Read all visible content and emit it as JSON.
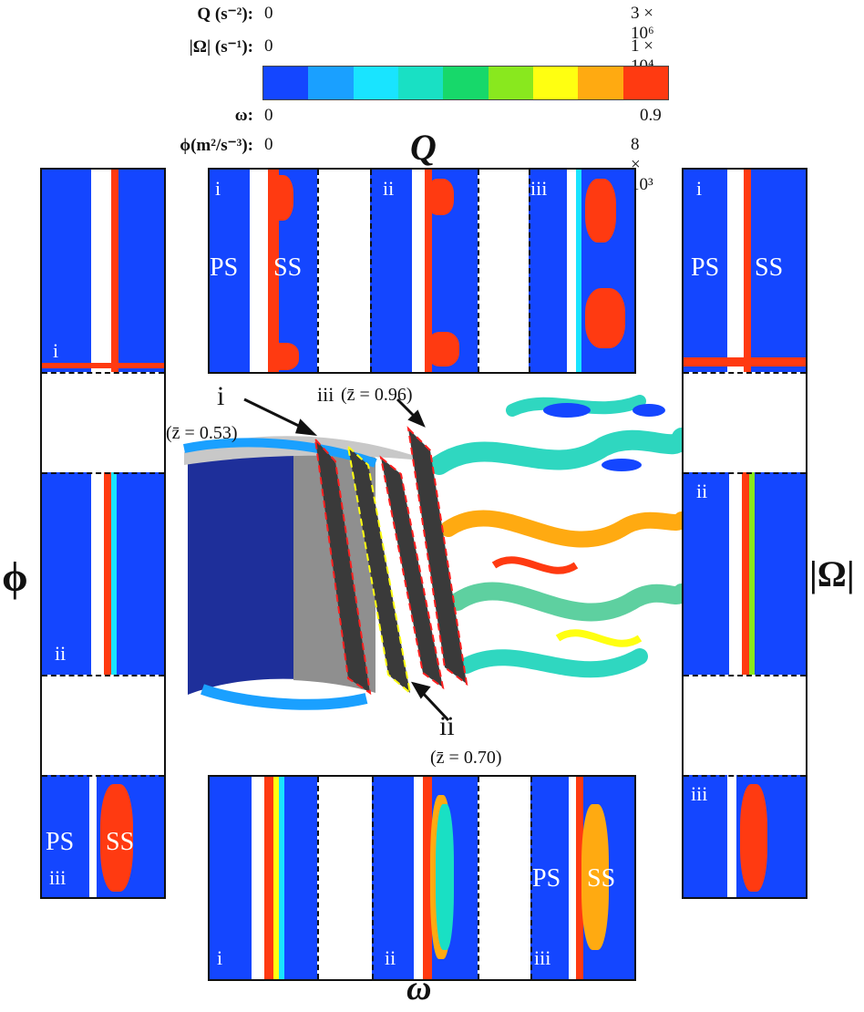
{
  "legend": {
    "rows": [
      {
        "label": "Q (s⁻²):",
        "min": "0",
        "max": "3 × 10⁶"
      },
      {
        "label": "|Ω| (s⁻¹):",
        "min": "0",
        "max": "1 × 10⁴"
      },
      {
        "label": "ω:",
        "min": "0",
        "max": "0.9"
      },
      {
        "label": "ϕ(m²/s⁻³):",
        "min": "0",
        "max": "8 × 10³"
      }
    ],
    "colors": [
      "#1446ff",
      "#1aa0ff",
      "#19e4ff",
      "#19e0c4",
      "#17d86a",
      "#89e81e",
      "#ffff11",
      "#ffaa11",
      "#ff3a11"
    ]
  },
  "titles": {
    "top": "Q",
    "bottom": "ω",
    "left": "ϕ",
    "right": "|Ω|"
  },
  "panels": {
    "q": [
      "i",
      "ii",
      "iii"
    ],
    "omega": [
      "i",
      "ii",
      "iii"
    ],
    "phi": [
      "i",
      "ii",
      "iii"
    ],
    "vort": [
      "i",
      "ii",
      "iii"
    ],
    "ps": "PS",
    "ss": "SS"
  },
  "center": {
    "planes": [
      {
        "label": "i",
        "z": "(z̄ = 0.53)"
      },
      {
        "label": "ii",
        "z": "(z̄ = 0.70)"
      },
      {
        "label": "iii",
        "z": "(z̄ = 0.96)"
      }
    ]
  }
}
